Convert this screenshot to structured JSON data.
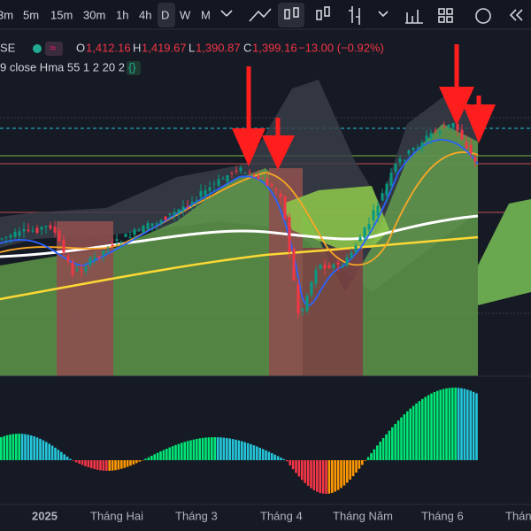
{
  "toolbar": {
    "intervals": [
      "3m",
      "5m",
      "15m",
      "30m",
      "1h",
      "4h",
      "D",
      "W",
      "M"
    ]
  },
  "legend": {
    "symbol": "SE",
    "open_label": "O",
    "open": "1,412.16",
    "high_label": "H",
    "high": "1,419.67",
    "low_label": "L",
    "low": "1,390.87",
    "close_label": "C",
    "close": "1,399.16",
    "change": "−13.00 (−0.92%)"
  },
  "indicator": {
    "label": "9 close Hma 55 1 2 20 2"
  },
  "x_axis": {
    "labels": [
      "2025",
      "Tháng Hai",
      "Tháng 3",
      "Tháng 4",
      "Tháng Năm",
      "Tháng 6",
      "Tháng"
    ]
  }
}
